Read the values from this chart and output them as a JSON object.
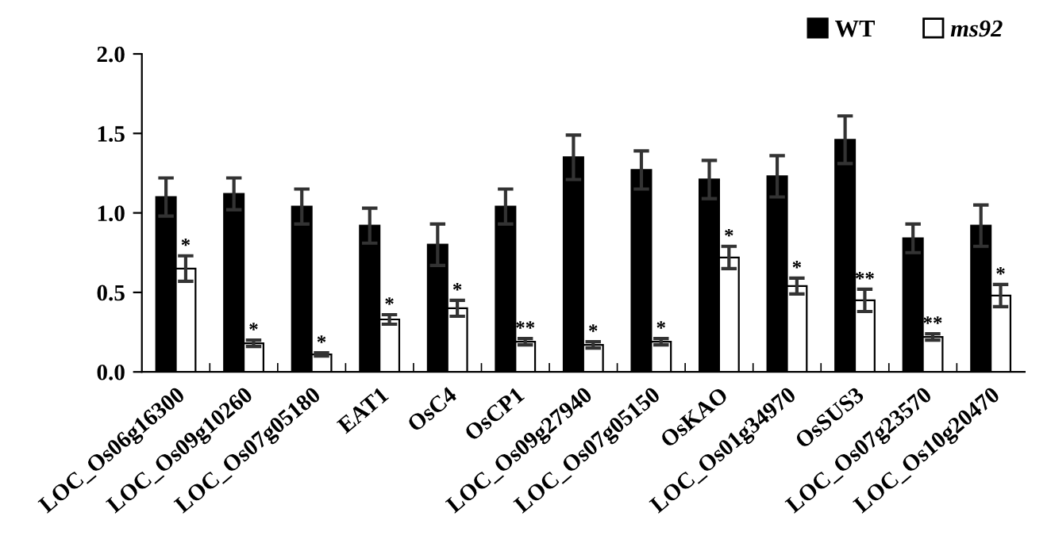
{
  "chart_data": {
    "type": "bar",
    "categories": [
      "LOC_Os06g16300",
      "LOC_Os09g10260",
      "LOC_Os07g05180",
      "EAT1",
      "OsC4",
      "OsCP1",
      "LOC_Os09g27940",
      "LOC_Os07g05150",
      "OsKAO",
      "LOC_Os01g34970",
      "OsSUS3",
      "LOC_Os07g23570",
      "LOC_Os10g20470"
    ],
    "series": [
      {
        "name": "WT",
        "color": "#000000",
        "values": [
          1.1,
          1.12,
          1.04,
          0.92,
          0.8,
          1.04,
          1.35,
          1.27,
          1.21,
          1.23,
          1.46,
          0.84,
          0.92
        ],
        "errors": [
          0.12,
          0.1,
          0.11,
          0.11,
          0.13,
          0.11,
          0.14,
          0.12,
          0.12,
          0.13,
          0.15,
          0.09,
          0.13
        ]
      },
      {
        "name": "ms92",
        "color": "#ffffff",
        "values": [
          0.65,
          0.18,
          0.11,
          0.33,
          0.4,
          0.19,
          0.17,
          0.19,
          0.72,
          0.54,
          0.45,
          0.22,
          0.48
        ],
        "errors": [
          0.08,
          0.02,
          0.01,
          0.03,
          0.05,
          0.02,
          0.02,
          0.02,
          0.07,
          0.05,
          0.07,
          0.02,
          0.07
        ]
      }
    ],
    "ylim": [
      0,
      2.0
    ],
    "yticks": [
      {
        "value": 0,
        "label": "0.0"
      },
      {
        "value": 0.5,
        "label": "0.5"
      },
      {
        "value": 1.0,
        "label": "1.0"
      },
      {
        "value": 1.5,
        "label": "1.5"
      },
      {
        "value": 2.0,
        "label": "2.0"
      }
    ],
    "annotations": [
      {
        "text": "*",
        "x": "LOC_Os06g16300",
        "y": 0.73
      },
      {
        "text": "*",
        "x": "LOC_Os09g10260",
        "y": 0.2
      },
      {
        "text": "*",
        "x": "LOC_Os07g05180",
        "y": 0.12
      },
      {
        "text": "*",
        "x": "EAT1",
        "y": 0.36
      },
      {
        "text": "*",
        "x": "OsC4",
        "y": 0.45
      },
      {
        "text": "**",
        "x": "OsCP1",
        "y": 0.21
      },
      {
        "text": "*",
        "x": "LOC_Os09g27940",
        "y": 0.19
      },
      {
        "text": "*",
        "x": "LOC_Os07g05150",
        "y": 0.21
      },
      {
        "text": "*",
        "x": "OsKAO",
        "y": 0.79
      },
      {
        "text": "*",
        "x": "LOC_Os01g34970",
        "y": 0.59
      },
      {
        "text": "**",
        "x": "OsSUS3",
        "y": 0.52
      },
      {
        "text": "**",
        "x": "LOC_Os07g23570",
        "y": 0.24
      },
      {
        "text": "*",
        "x": "LOC_Os10g20470",
        "y": 0.55
      }
    ],
    "legend": "top right",
    "grid": false
  }
}
